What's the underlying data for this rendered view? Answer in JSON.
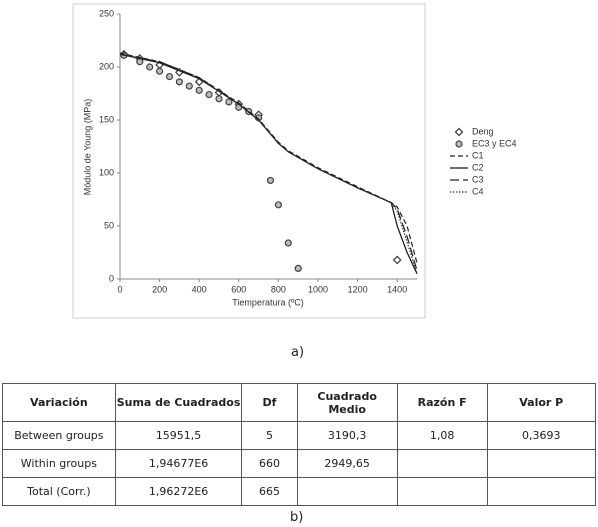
{
  "chart_data": {
    "type": "scatter",
    "xlabel": "Tiemperatura (ºC)",
    "ylabel": "Módulo de Young (MPa)",
    "xlim": [
      0,
      1500
    ],
    "ylim": [
      0,
      250
    ],
    "xticks": [
      0,
      200,
      400,
      600,
      800,
      1000,
      1200,
      1400
    ],
    "yticks": [
      0,
      50,
      100,
      150,
      200,
      250
    ],
    "series": [
      {
        "name": "Deng",
        "color": "#444444",
        "marker": "diamond",
        "x": [
          20,
          100,
          200,
          300,
          400,
          500,
          600,
          700,
          1400
        ],
        "values": [
          212,
          208,
          202,
          195,
          186,
          176,
          165,
          155,
          18
        ]
      },
      {
        "name": "EC3 y EC4",
        "color": "#444444",
        "marker": "circle",
        "x": [
          20,
          100,
          150,
          200,
          250,
          300,
          350,
          400,
          450,
          500,
          550,
          600,
          650,
          700,
          760,
          800,
          850,
          900
        ],
        "values": [
          211,
          205,
          200,
          196,
          191,
          186,
          182,
          178,
          174,
          170,
          167,
          162,
          158,
          152,
          93,
          70,
          34,
          10
        ]
      },
      {
        "name": "C1",
        "color": "#222222",
        "dash": "5,3",
        "x": [
          0,
          200,
          400,
          600,
          700,
          800,
          850,
          1000,
          1200,
          1370,
          1400,
          1450,
          1500
        ],
        "values": [
          213,
          205,
          190,
          166,
          151,
          129,
          121,
          105,
          87,
          72,
          68,
          50,
          15
        ]
      },
      {
        "name": "C2",
        "color": "#111111",
        "dash": "none",
        "x": [
          0,
          200,
          400,
          600,
          700,
          800,
          850,
          1000,
          1200,
          1370,
          1400,
          1450,
          1500
        ],
        "values": [
          212,
          204,
          189,
          165,
          150,
          128,
          120,
          104,
          86,
          72,
          50,
          25,
          5
        ]
      },
      {
        "name": "C3",
        "color": "#222222",
        "dash": "9,4",
        "x": [
          0,
          200,
          400,
          600,
          700,
          800,
          850,
          1000,
          1200,
          1370,
          1400,
          1450,
          1500
        ],
        "values": [
          212,
          205,
          190,
          165,
          150,
          128,
          120,
          104,
          86,
          72,
          66,
          40,
          8
        ]
      },
      {
        "name": "C4",
        "color": "#333333",
        "dash": "1.5,1.5",
        "x": [
          0,
          200,
          400,
          600,
          700,
          800,
          850,
          1000,
          1200,
          1370,
          1400,
          1450,
          1500
        ],
        "values": [
          212,
          204,
          189,
          165,
          150,
          128,
          120,
          104,
          86,
          72,
          64,
          35,
          5
        ]
      }
    ]
  },
  "chart_caption": "a)",
  "table": {
    "rows": [
      [
        "Variación",
        "Suma de Cuadrados",
        "Df",
        "Cuadrado Medio",
        "Razón F",
        "Valor P"
      ],
      [
        "Between groups",
        "15951,5",
        "5",
        "3190,3",
        "1,08",
        "0,3693"
      ],
      [
        "Within groups",
        "1,94677E6",
        "660",
        "2949,65",
        null,
        null
      ],
      [
        "Total (Corr.)",
        "1,96272E6",
        "665",
        null,
        null,
        null
      ]
    ]
  },
  "table_caption": "b)"
}
